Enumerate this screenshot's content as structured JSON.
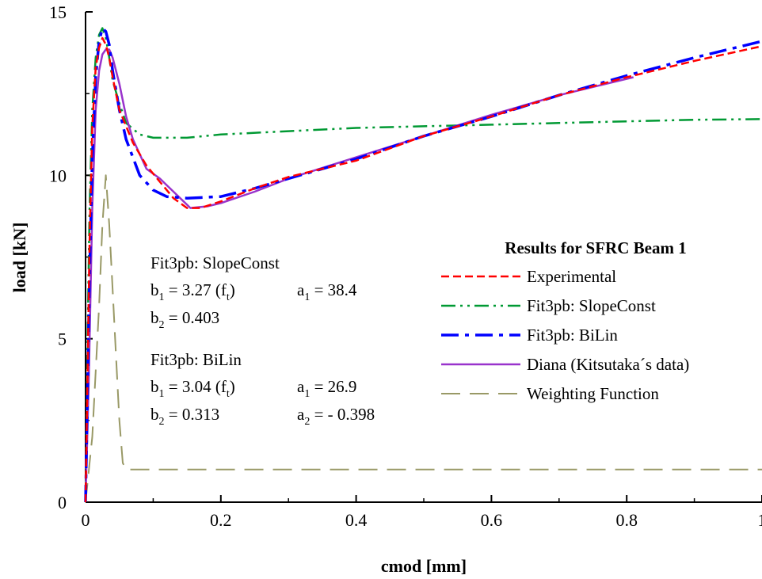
{
  "chart_data": {
    "type": "line",
    "title": "",
    "xlabel": "cmod [mm]",
    "ylabel": "load [kN]",
    "xlim": [
      0,
      1
    ],
    "ylim": [
      0,
      15
    ],
    "xticks": [
      0,
      0.2,
      0.4,
      0.6,
      0.8,
      1
    ],
    "xtick_labels": [
      "0",
      "0.2",
      "0.4",
      "0.6",
      "0.8",
      "1"
    ],
    "yticks": [
      0,
      5,
      10,
      15
    ],
    "ytick_labels": [
      "0",
      "5",
      "10",
      "15"
    ],
    "grid": false,
    "legend": {
      "title": "Results for SFRC Beam 1",
      "placement": "center-right"
    },
    "series": [
      {
        "name": "Experimental",
        "color": "#ff0000",
        "style": "dashed",
        "x": [
          0,
          0.003,
          0.006,
          0.01,
          0.015,
          0.02,
          0.025,
          0.03,
          0.035,
          0.04,
          0.05,
          0.07,
          0.09,
          0.11,
          0.13,
          0.15,
          0.17,
          0.2,
          0.25,
          0.3,
          0.35,
          0.4,
          0.5,
          0.6,
          0.7,
          0.8,
          0.9,
          1.0
        ],
        "y": [
          0,
          4,
          8,
          11.5,
          13.3,
          13.9,
          14.2,
          14.0,
          13.6,
          13.0,
          12.0,
          11.0,
          10.3,
          9.8,
          9.3,
          9.0,
          9.0,
          9.2,
          9.6,
          9.95,
          10.2,
          10.45,
          11.2,
          11.8,
          12.45,
          13.0,
          13.5,
          13.95
        ]
      },
      {
        "name": "Fit3pb: SlopeConst",
        "color": "#009933",
        "style": "dash-dot-dot",
        "x": [
          0,
          0.003,
          0.006,
          0.01,
          0.015,
          0.02,
          0.025,
          0.03,
          0.035,
          0.04,
          0.05,
          0.06,
          0.08,
          0.1,
          0.15,
          0.2,
          0.3,
          0.4,
          0.5,
          0.6,
          0.7,
          0.8,
          0.9,
          1.0
        ],
        "y": [
          0,
          5,
          9,
          12,
          13.6,
          14.3,
          14.5,
          14.2,
          13.6,
          12.9,
          12.2,
          11.6,
          11.25,
          11.15,
          11.15,
          11.25,
          11.35,
          11.45,
          11.5,
          11.55,
          11.6,
          11.65,
          11.7,
          11.72
        ]
      },
      {
        "name": "Fit3pb: BiLin",
        "color": "#0000ff",
        "style": "long-dash-dot",
        "x": [
          0,
          0.003,
          0.006,
          0.01,
          0.015,
          0.02,
          0.025,
          0.03,
          0.035,
          0.04,
          0.05,
          0.06,
          0.08,
          0.1,
          0.12,
          0.15,
          0.2,
          0.25,
          0.3,
          0.4,
          0.5,
          0.6,
          0.7,
          0.8,
          0.9,
          1.0
        ],
        "y": [
          0,
          3.5,
          7,
          10.5,
          13,
          14.1,
          14.5,
          14.4,
          14.0,
          13.2,
          12.0,
          11.1,
          10.0,
          9.55,
          9.35,
          9.3,
          9.35,
          9.6,
          9.9,
          10.5,
          11.2,
          11.8,
          12.45,
          13.05,
          13.6,
          14.1
        ]
      },
      {
        "name": "Diana (Kitsutaka´s data)",
        "color": "#9933cc",
        "style": "solid",
        "x": [
          0,
          0.005,
          0.01,
          0.015,
          0.02,
          0.025,
          0.03,
          0.035,
          0.04,
          0.05,
          0.06,
          0.07,
          0.09,
          0.11,
          0.13,
          0.155,
          0.18,
          0.2,
          0.25,
          0.3,
          0.4,
          0.5,
          0.6,
          0.7,
          0.81
        ],
        "y": [
          0,
          4,
          9,
          12,
          13.2,
          13.7,
          13.85,
          13.85,
          13.6,
          12.8,
          11.8,
          11.1,
          10.2,
          9.9,
          9.5,
          9.0,
          9.05,
          9.15,
          9.5,
          9.9,
          10.55,
          11.2,
          11.85,
          12.45,
          13.0
        ]
      },
      {
        "name": "Weighting Function",
        "color": "#999966",
        "style": "long-dashed",
        "x": [
          0,
          0.01,
          0.02,
          0.025,
          0.03,
          0.035,
          0.04,
          0.045,
          0.05,
          0.055,
          0.06,
          0.07,
          1.0
        ],
        "y": [
          0,
          2.0,
          6.0,
          8.5,
          10.0,
          8.5,
          6.5,
          4.5,
          2.5,
          1.2,
          1.0,
          1.0,
          1.0
        ]
      }
    ],
    "annotations": [
      {
        "title": "Fit3pb: SlopeConst",
        "b1": "3.27",
        "ft": "(f",
        "ft_sub": "t",
        "ft_close": ")",
        "a1": "38.4",
        "b2": "0.403"
      },
      {
        "title": "Fit3pb: BiLin",
        "b1": "3.04",
        "ft": "(f",
        "ft_sub": "t",
        "ft_close": ")",
        "a1": "26.9",
        "b2": "0.313",
        "a2": "- 0.398"
      }
    ]
  }
}
